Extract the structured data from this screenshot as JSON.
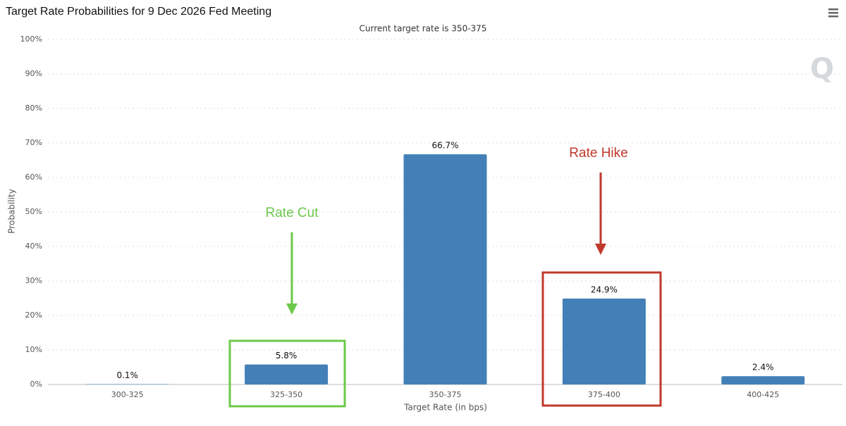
{
  "chart_data": {
    "type": "bar",
    "title": "Target Rate Probabilities for 9 Dec 2026 Fed Meeting",
    "subtitle": "Current target rate is 350-375",
    "x_label": "Target Rate (in bps)",
    "y_label": "Probability",
    "categories": [
      "300-325",
      "325-350",
      "350-375",
      "375-400",
      "400-425"
    ],
    "values": [
      0.1,
      5.8,
      66.7,
      24.9,
      2.4
    ],
    "value_labels": [
      "0.1%",
      "5.8%",
      "66.7%",
      "24.9%",
      "2.4%"
    ],
    "color": "#4480b8",
    "ylim": [
      0,
      100
    ],
    "yticks": [
      {
        "value": 0,
        "label": "0%"
      },
      {
        "value": 10,
        "label": "10%"
      },
      {
        "value": 20,
        "label": "20%"
      },
      {
        "value": 30,
        "label": "30%"
      },
      {
        "value": 40,
        "label": "40%"
      },
      {
        "value": 50,
        "label": "50%"
      },
      {
        "value": 60,
        "label": "60%"
      },
      {
        "value": 70,
        "label": "70%"
      },
      {
        "value": 80,
        "label": "80%"
      },
      {
        "value": 90,
        "label": "90%"
      },
      {
        "value": 100,
        "label": "100%"
      }
    ],
    "grid": true,
    "annotations": [
      {
        "text": "Rate Cut",
        "color": "#6cc94a"
      },
      {
        "text": "Rate Hike",
        "color": "#c0392b"
      }
    ]
  }
}
